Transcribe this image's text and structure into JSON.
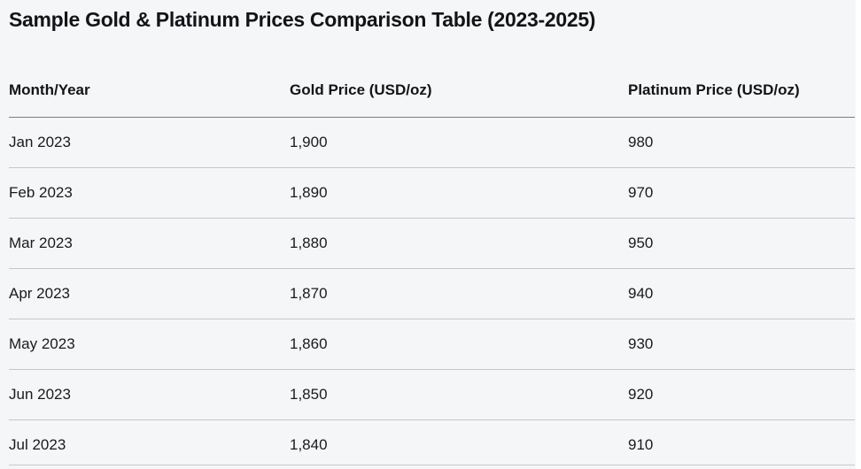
{
  "page": {
    "title": "Sample Gold & Platinum Prices Comparison Table (2023-2025)"
  },
  "colors": {
    "background": "#f5f6f7",
    "text": "#1a1a1e",
    "header_rule": "#7d7d82",
    "row_rule": "#c7c7cb"
  },
  "chart_data": {
    "type": "table",
    "title": "Sample Gold & Platinum Prices Comparison Table (2023-2025)",
    "columns": [
      "Month/Year",
      "Gold Price (USD/oz)",
      "Platinum Price (USD/oz)"
    ],
    "rows": [
      [
        "Jan 2023",
        "1,900",
        "980"
      ],
      [
        "Feb 2023",
        "1,890",
        "970"
      ],
      [
        "Mar 2023",
        "1,880",
        "950"
      ],
      [
        "Apr 2023",
        "1,870",
        "940"
      ],
      [
        "May 2023",
        "1,860",
        "930"
      ],
      [
        "Jun 2023",
        "1,850",
        "920"
      ],
      [
        "Jul 2023",
        "1,840",
        "910"
      ]
    ],
    "rows_numeric": {
      "months": [
        "Jan 2023",
        "Feb 2023",
        "Mar 2023",
        "Apr 2023",
        "May 2023",
        "Jun 2023",
        "Jul 2023"
      ],
      "series": [
        {
          "name": "Gold Price (USD/oz)",
          "values": [
            1900,
            1890,
            1880,
            1870,
            1860,
            1850,
            1840
          ]
        },
        {
          "name": "Platinum Price (USD/oz)",
          "values": [
            980,
            970,
            950,
            940,
            930,
            920,
            910
          ]
        }
      ]
    }
  }
}
